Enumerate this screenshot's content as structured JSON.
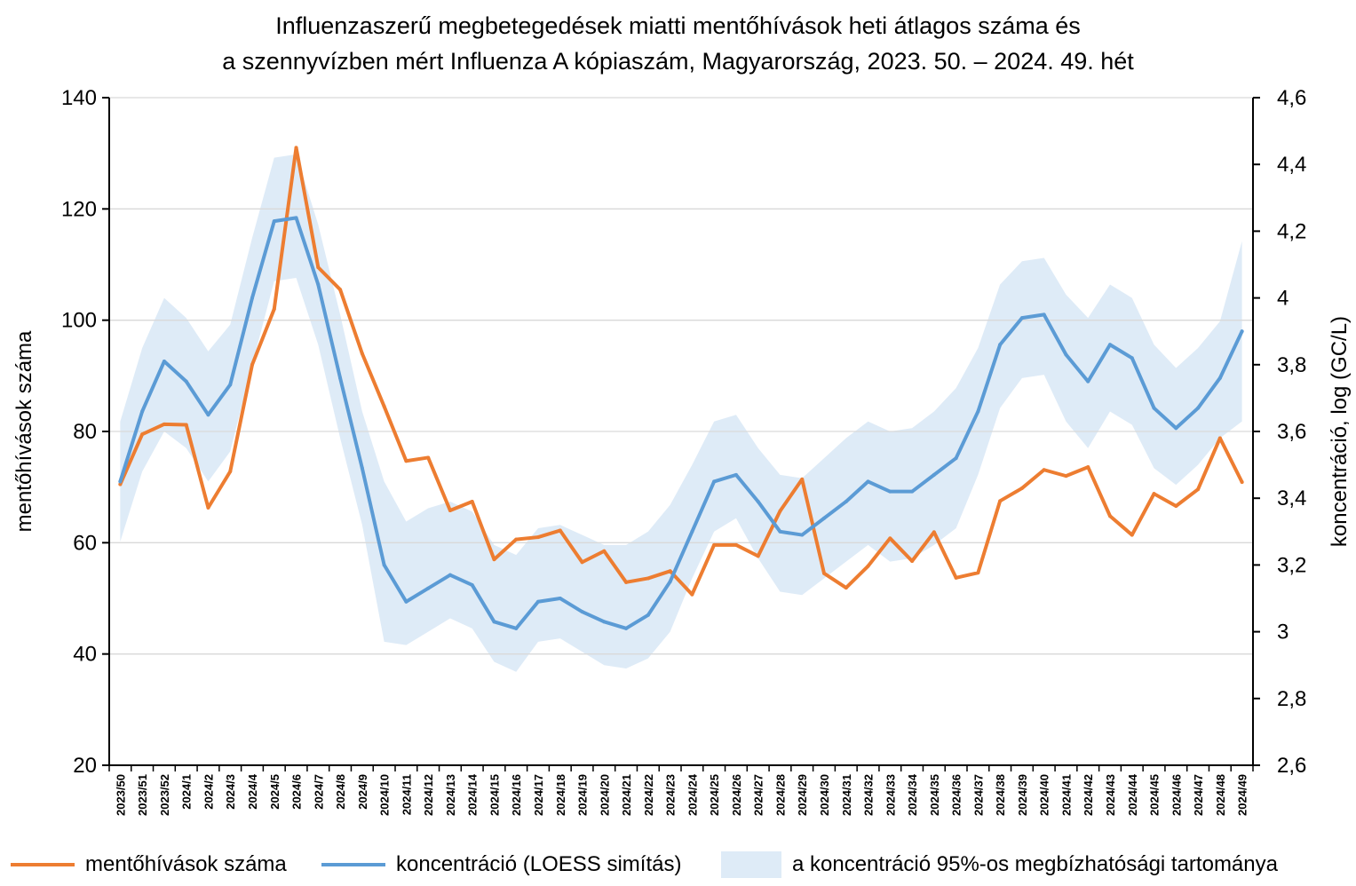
{
  "title": {
    "line1": "Influenzaszerű megbetegedések miatti mentőhívások heti átlagos száma és",
    "line2": "a szennyvízben mért Influenza A kópiaszám, Magyarország, 2023. 50. – 2024. 49. hét"
  },
  "chart_data": {
    "type": "line",
    "xlabel": "",
    "ylabel": "mentőhívások száma",
    "y2label": "koncentráció, log (GC/L)",
    "ylim": [
      20,
      140
    ],
    "y2lim": [
      2.6,
      4.6
    ],
    "yticks": [
      "20",
      "40",
      "60",
      "80",
      "100",
      "120",
      "140"
    ],
    "y2ticks": [
      "2,6",
      "2,8",
      "3",
      "3,2",
      "3,4",
      "3,6",
      "3,8",
      "4",
      "4,2",
      "4,4",
      "4,6"
    ],
    "grid": true,
    "legend_position": "bottom",
    "categories": [
      "2023/50",
      "2023/51",
      "2023/52",
      "2024/1",
      "2024/2",
      "2024/3",
      "2024/4",
      "2024/5",
      "2024/6",
      "2024/7",
      "2024/8",
      "2024/9",
      "2024/10",
      "2024/11",
      "2024/12",
      "2024/13",
      "2024/14",
      "2024/15",
      "2024/16",
      "2024/17",
      "2024/18",
      "2024/19",
      "2024/20",
      "2024/21",
      "2024/22",
      "2024/23",
      "2024/24",
      "2024/25",
      "2024/26",
      "2024/27",
      "2024/28",
      "2024/29",
      "2024/30",
      "2024/31",
      "2024/32",
      "2024/33",
      "2024/34",
      "2024/35",
      "2024/36",
      "2024/37",
      "2024/38",
      "2024/39",
      "2024/40",
      "2024/41",
      "2024/42",
      "2024/43",
      "2024/44",
      "2024/45",
      "2024/46",
      "2024/47",
      "2024/48",
      "2024/49"
    ],
    "series": [
      {
        "name": "mentőhívások száma",
        "axis": "left",
        "color": "#ED7D31",
        "values": [
          70.5,
          79.5,
          81.3,
          81.2,
          66.3,
          72.8,
          92,
          102,
          131,
          109.5,
          105.5,
          94,
          84.5,
          74.7,
          75.3,
          65.8,
          67.4,
          57,
          60.6,
          61,
          62.2,
          56.5,
          58.5,
          52.9,
          53.6,
          54.9,
          50.7,
          59.6,
          59.6,
          57.6,
          65.7,
          71.4,
          54.5,
          51.9,
          55.8,
          60.8,
          56.7,
          61.9,
          53.7,
          54.6,
          67.5,
          69.8,
          73.1,
          72,
          73.6,
          64.8,
          61.4,
          68.8,
          66.6,
          69.6,
          78.8,
          70.9
        ]
      },
      {
        "name": "koncentráció (LOESS simítás)",
        "axis": "right",
        "color": "#5B9BD5",
        "values": [
          3.45,
          3.66,
          3.81,
          3.75,
          3.65,
          3.74,
          4.0,
          4.23,
          4.24,
          4.04,
          3.76,
          3.49,
          3.2,
          3.09,
          3.13,
          3.17,
          3.14,
          3.03,
          3.01,
          3.09,
          3.1,
          3.06,
          3.03,
          3.01,
          3.05,
          3.15,
          3.3,
          3.45,
          3.47,
          3.39,
          3.3,
          3.29,
          3.34,
          3.39,
          3.45,
          3.42,
          3.42,
          3.47,
          3.52,
          3.66,
          3.86,
          3.94,
          3.95,
          3.83,
          3.75,
          3.86,
          3.82,
          3.67,
          3.61,
          3.67,
          3.76,
          3.9
        ]
      }
    ],
    "band": {
      "name": "a koncentráció 95%-os megbízhatósági tartománya",
      "axis": "right",
      "color": "#DEEBF7",
      "lower": [
        3.27,
        3.48,
        3.6,
        3.55,
        3.45,
        3.54,
        3.8,
        4.05,
        4.06,
        3.86,
        3.58,
        3.32,
        2.97,
        2.96,
        3.0,
        3.04,
        3.01,
        2.91,
        2.88,
        2.97,
        2.98,
        2.94,
        2.9,
        2.89,
        2.92,
        3.0,
        3.16,
        3.3,
        3.34,
        3.22,
        3.12,
        3.11,
        3.16,
        3.21,
        3.26,
        3.21,
        3.22,
        3.26,
        3.31,
        3.47,
        3.67,
        3.76,
        3.77,
        3.63,
        3.55,
        3.66,
        3.62,
        3.49,
        3.44,
        3.5,
        3.58,
        3.63
      ],
      "upper": [
        3.63,
        3.85,
        4.0,
        3.94,
        3.84,
        3.92,
        4.18,
        4.42,
        4.43,
        4.22,
        3.95,
        3.66,
        3.45,
        3.33,
        3.37,
        3.39,
        3.36,
        3.26,
        3.23,
        3.31,
        3.32,
        3.29,
        3.26,
        3.26,
        3.3,
        3.38,
        3.5,
        3.63,
        3.65,
        3.55,
        3.47,
        3.46,
        3.52,
        3.58,
        3.63,
        3.6,
        3.61,
        3.66,
        3.73,
        3.85,
        4.04,
        4.11,
        4.12,
        4.01,
        3.94,
        4.04,
        4.0,
        3.86,
        3.79,
        3.85,
        3.93,
        4.17
      ]
    }
  }
}
